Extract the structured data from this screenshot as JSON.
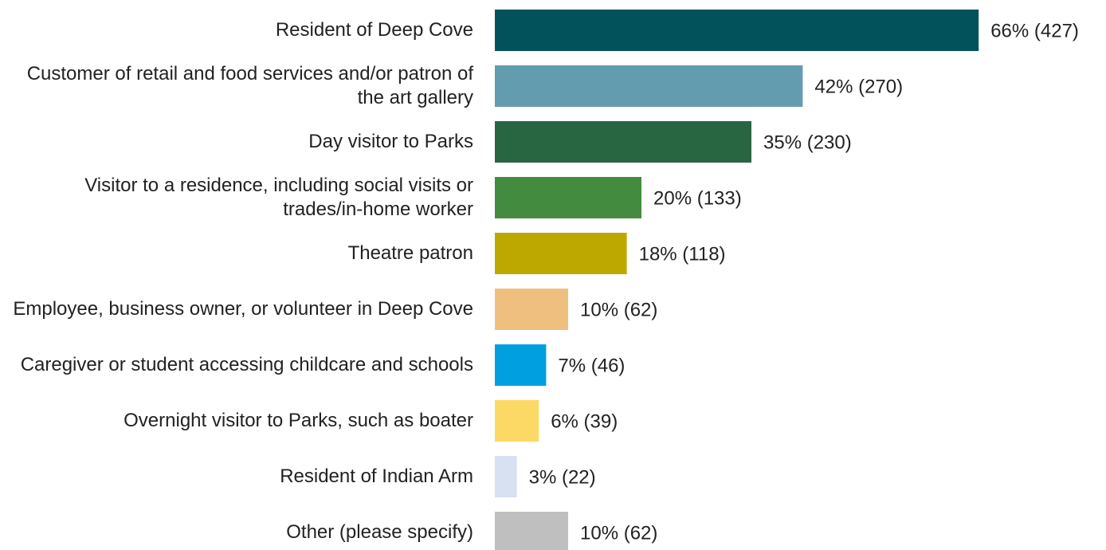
{
  "chart_data": {
    "type": "barh",
    "categories": [
      "Resident of Deep Cove",
      "Customer of retail and food services and/or patron of the art gallery",
      "Day visitor to Parks",
      "Visitor to a residence, including social visits or trades/in-home worker",
      "Theatre patron",
      "Employee, business owner, or volunteer in Deep Cove",
      "Caregiver or student accessing childcare and schools",
      "Overnight visitor to Parks, such as boater",
      "Resident of Indian Arm",
      "Other (please specify)"
    ],
    "values": [
      66,
      42,
      35,
      20,
      18,
      10,
      7,
      6,
      3,
      10
    ],
    "value_labels": [
      "66% (427)",
      "42% (270)",
      "35% (230)",
      "20% (133)",
      "18% (118)",
      "10% (62)",
      "7% (46)",
      "6% (39)",
      "3% (22)",
      "10% (62)"
    ],
    "colors": [
      "#02525b",
      "#639baf",
      "#286642",
      "#438b3e",
      "#bda800",
      "#efbf80",
      "#009fdf",
      "#fcd964",
      "#d7e1f1",
      "#bfbfbf"
    ],
    "xlim": [
      0,
      100
    ]
  }
}
